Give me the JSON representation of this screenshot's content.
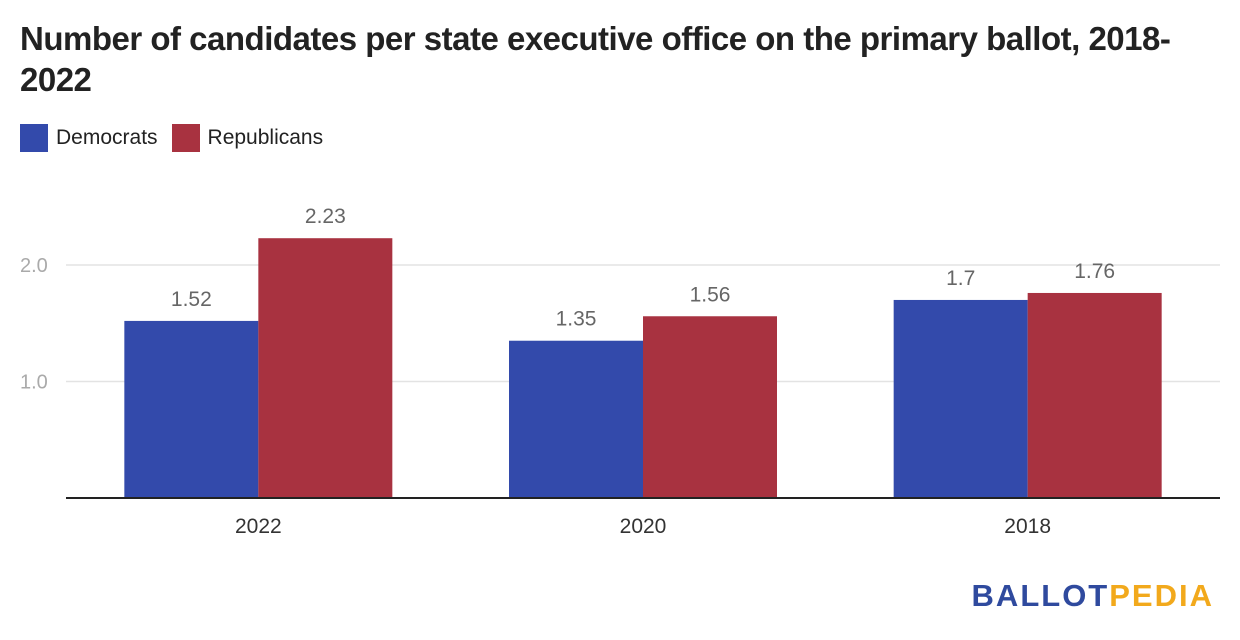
{
  "title": "Number of candidates per state executive office on the primary ballot, 2018-2022",
  "logo": {
    "part1": "BALLOT",
    "part2": "PEDIA"
  },
  "colors": {
    "democrats": "#334aab",
    "republicans": "#a83240",
    "grid": "#e3e3e3",
    "axis": "#222222",
    "tick_label": "#aaaaaa",
    "data_label": "#666666"
  },
  "chart_data": {
    "type": "bar",
    "title": "Number of candidates per state executive office on the primary ballot, 2018-2022",
    "categories": [
      "2022",
      "2020",
      "2018"
    ],
    "series": [
      {
        "name": "Democrats",
        "values": [
          1.52,
          1.35,
          1.7
        ],
        "labels": [
          "1.52",
          "1.35",
          "1.7"
        ]
      },
      {
        "name": "Republicans",
        "values": [
          2.23,
          1.56,
          1.76
        ],
        "labels": [
          "2.23",
          "1.56",
          "1.76"
        ]
      }
    ],
    "y_ticks": [
      {
        "value": 1.0,
        "label": "1.0"
      },
      {
        "value": 2.0,
        "label": "2.0"
      }
    ],
    "ylim": [
      0,
      2.5
    ],
    "grid": true,
    "legend": "top-left",
    "xlabel": "",
    "ylabel": ""
  }
}
